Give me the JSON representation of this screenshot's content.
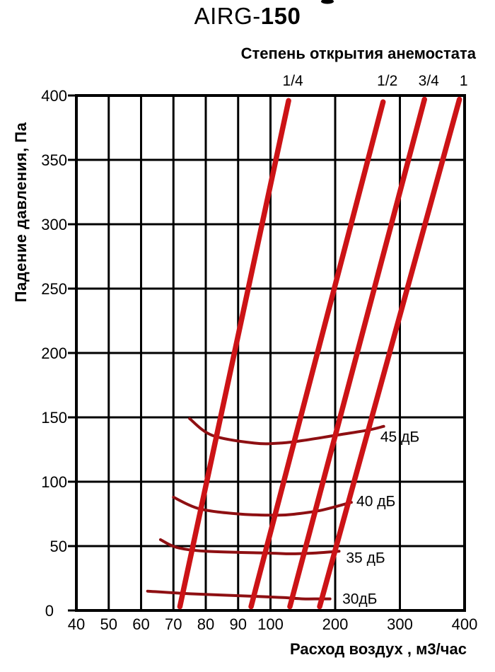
{
  "title": {
    "prefix": "AIRG-",
    "bold": "150",
    "full": "AIRG-150"
  },
  "subtitle": "Степень открытия анемостата",
  "chart_data": {
    "type": "line",
    "title": "AIRG-150",
    "subtitle": "Степень открытия анемостата",
    "x_axis": {
      "label": "Расход воздух , м3/час",
      "ticks": [
        40,
        50,
        60,
        70,
        80,
        90,
        100,
        200,
        300,
        400
      ],
      "range": [
        40,
        400
      ],
      "scale": "segmented pseudo-log: equal grid steps 40-100 by 10, then 100-400 by 100 at double step width"
    },
    "y_axis": {
      "label": "Падение давления, Па",
      "ticks": [
        0,
        50,
        100,
        150,
        200,
        250,
        300,
        350,
        400
      ],
      "range": [
        0,
        400
      ],
      "scale": "linear"
    },
    "grid": "on",
    "legend_position": "labels above lines (opening degree) and at right ends of curves (noise level)",
    "opening_series": [
      {
        "id": "1-4",
        "label": "1/4",
        "points": [
          [
            72,
            3
          ],
          [
            128,
            396
          ]
        ]
      },
      {
        "id": "1-2",
        "label": "1/2",
        "points": [
          [
            94,
            3
          ],
          [
            274,
            395
          ]
        ]
      },
      {
        "id": "3-4",
        "label": "3/4",
        "points": [
          [
            130,
            3
          ],
          [
            338,
            397
          ]
        ]
      },
      {
        "id": "1",
        "label": "1",
        "points": [
          [
            176,
            3
          ],
          [
            392,
            397
          ]
        ]
      }
    ],
    "noise_series": [
      {
        "db": 45,
        "label": "45 дБ",
        "label_at": [
          300,
          135
        ],
        "points": [
          [
            75,
            149
          ],
          [
            82,
            136
          ],
          [
            95,
            130
          ],
          [
            115,
            130
          ],
          [
            150,
            132
          ],
          [
            200,
            136
          ],
          [
            250,
            140
          ],
          [
            275,
            143
          ]
        ]
      },
      {
        "db": 40,
        "label": "40 дБ",
        "label_at": [
          263,
          85
        ],
        "points": [
          [
            70,
            88
          ],
          [
            78,
            79
          ],
          [
            90,
            75
          ],
          [
            110,
            74
          ],
          [
            140,
            75
          ],
          [
            180,
            78
          ],
          [
            225,
            84
          ]
        ]
      },
      {
        "db": 35,
        "label": "35 дБ",
        "label_at": [
          247,
          41
        ],
        "points": [
          [
            66,
            55
          ],
          [
            71,
            49
          ],
          [
            80,
            46
          ],
          [
            100,
            44.5
          ],
          [
            130,
            44
          ],
          [
            165,
            44.5
          ],
          [
            206,
            46
          ]
        ]
      },
      {
        "db": 30,
        "label": "30дБ",
        "label_at": [
          238,
          9
        ],
        "points": [
          [
            62,
            15
          ],
          [
            75,
            13
          ],
          [
            95,
            11
          ],
          [
            120,
            10
          ],
          [
            150,
            9
          ],
          [
            175,
            9
          ],
          [
            192,
            9
          ]
        ]
      }
    ],
    "colors": {
      "opening": "#cc1316",
      "noise": "#8e0f12",
      "axis": "#000000",
      "background": "#ffffff"
    }
  }
}
